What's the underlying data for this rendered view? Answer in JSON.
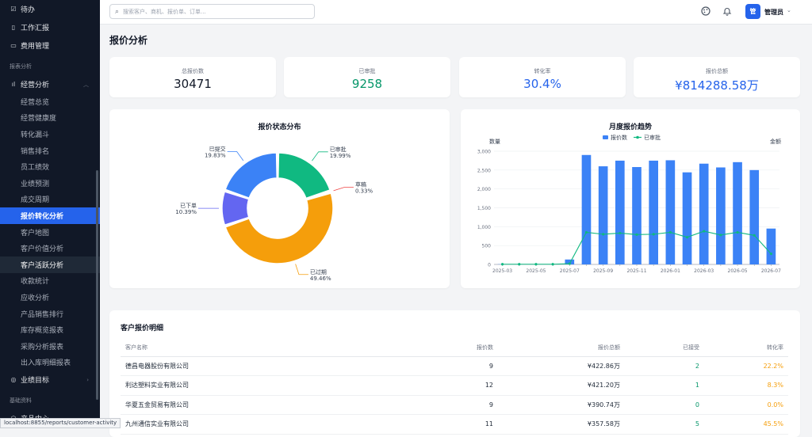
{
  "sidebar": {
    "items_top": [
      {
        "label": "待办",
        "icon": "check-square-icon"
      },
      {
        "label": "工作汇报",
        "icon": "document-icon"
      },
      {
        "label": "费用管理",
        "icon": "card-icon"
      }
    ],
    "section_reports": "报表分析",
    "parent_business": "经营分析",
    "sub_items": [
      "经营总览",
      "经营健康度",
      "转化漏斗",
      "销售排名",
      "员工绩效",
      "业绩预测",
      "成交周期",
      "报价转化分析",
      "客户地图",
      "客户价值分析",
      "客户活跃分析",
      "收款统计",
      "应收分析",
      "产品销售排行",
      "库存概览报表",
      "采购分析报表",
      "出入库明细报表"
    ],
    "active_sub": "报价转化分析",
    "hover_sub": "客户活跃分析",
    "parent_goals": "业绩目标",
    "section_base": "基础资料",
    "parent_product": "产品中心"
  },
  "status_url": "localhost:8855/reports/customer-activity",
  "topbar": {
    "search_placeholder": "搜索客户、商机、报价单、订单...",
    "avatar_text": "管",
    "user_name": "管理员"
  },
  "page_title": "报价分析",
  "stats": [
    {
      "label": "总报价数",
      "value": "30471",
      "color": "#111827"
    },
    {
      "label": "已审批",
      "value": "9258",
      "color": "#059669"
    },
    {
      "label": "转化率",
      "value": "30.4%",
      "color": "#2563eb"
    },
    {
      "label": "报价总额",
      "value": "¥814288.58万",
      "color": "#2563eb"
    }
  ],
  "chart_data": [
    {
      "type": "pie",
      "title": "报价状态分布",
      "slices": [
        {
          "label": "已审批",
          "value": 19.99,
          "pct": "19.99%",
          "color": "#10b981"
        },
        {
          "label": "草稿",
          "value": 0.33,
          "pct": "0.33%",
          "color": "#ef4444"
        },
        {
          "label": "已过期",
          "value": 49.46,
          "pct": "49.46%",
          "color": "#f59e0b"
        },
        {
          "label": "已下单",
          "value": 10.39,
          "pct": "10.39%",
          "color": "#6366f1"
        },
        {
          "label": "已提交",
          "value": 19.83,
          "pct": "19.83%",
          "color": "#3b82f6"
        }
      ]
    },
    {
      "type": "bar",
      "title": "月度报价趋势",
      "ylabel_left": "数量",
      "ylabel_right": "金额",
      "ylim": [
        0,
        3000
      ],
      "yticks": [
        "0",
        "500",
        "1,000",
        "1,500",
        "2,000",
        "2,500",
        "3,000"
      ],
      "xtick_labels": [
        "2025-03",
        "2025-05",
        "2025-07",
        "2025-09",
        "2025-11",
        "2026-01",
        "2026-03",
        "2026-05",
        "2026-07"
      ],
      "categories": [
        "2025-03",
        "2025-04",
        "2025-05",
        "2025-06",
        "2025-07",
        "2025-08",
        "2025-09",
        "2025-10",
        "2025-11",
        "2025-12",
        "2026-01",
        "2026-02",
        "2026-03",
        "2026-04",
        "2026-05",
        "2026-06",
        "2026-07"
      ],
      "series": [
        {
          "name": "报价数",
          "type": "bar",
          "color": "#3b82f6",
          "values": [
            5,
            5,
            5,
            5,
            130,
            2900,
            2600,
            2750,
            2580,
            2750,
            2760,
            2440,
            2670,
            2570,
            2710,
            2500,
            950
          ]
        },
        {
          "name": "已审批",
          "type": "line",
          "color": "#10b981",
          "values": [
            5,
            5,
            5,
            5,
            20,
            850,
            800,
            830,
            790,
            800,
            850,
            720,
            880,
            780,
            850,
            770,
            280
          ]
        }
      ]
    }
  ],
  "table": {
    "title": "客户报价明细",
    "columns": [
      "客户名称",
      "报价数",
      "报价总额",
      "已接受",
      "转化率"
    ],
    "rows": [
      [
        "德昌电器股份有限公司",
        "9",
        "¥422.86万",
        "2",
        "22.2%"
      ],
      [
        "利达塑料实业有限公司",
        "12",
        "¥421.20万",
        "1",
        "8.3%"
      ],
      [
        "华夏五金贸易有限公司",
        "9",
        "¥390.74万",
        "0",
        "0.0%"
      ],
      [
        "九州通信实业有限公司",
        "11",
        "¥357.58万",
        "5",
        "45.5%"
      ]
    ]
  }
}
